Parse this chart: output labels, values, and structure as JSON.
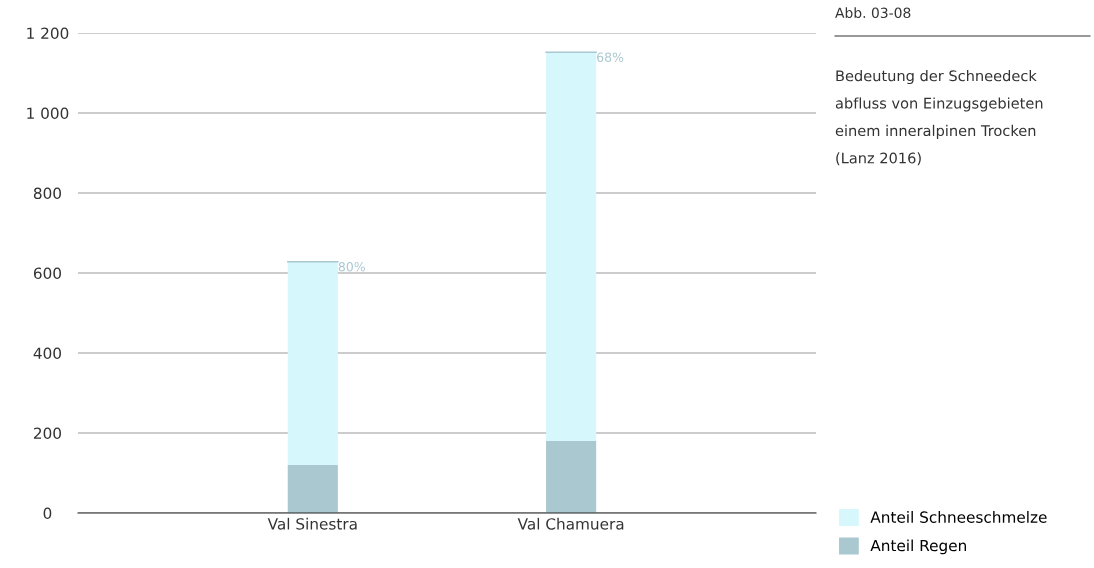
{
  "chart_data": {
    "type": "bar",
    "stacked": true,
    "categories": [
      "Val Sinestra",
      "Val Chamuera"
    ],
    "series": [
      {
        "name": "Anteil Regen",
        "color": "#a9c8cf",
        "values": [
          120,
          180
        ]
      },
      {
        "name": "Anteil Schneeschmelze",
        "color": "#d6f7fc",
        "values": [
          508,
          972
        ]
      }
    ],
    "ylim": [
      0,
      1200
    ],
    "yticks": [
      0,
      200,
      400,
      600,
      800,
      {
        "value": 1000,
        "label": "1 000"
      },
      {
        "value": 1200,
        "label": "1 200"
      }
    ],
    "grid": "y",
    "legend": "bottom right",
    "title": "Abb. 03-08",
    "subtitle": "Bedeutung der Schneedeck\nabfluss von Einzugsgebieten\neinem inneralpinen Trocken\n(Lanz 2016)",
    "annotations": [
      {
        "text": "80%",
        "x": "Val Sinestra",
        "y": 628
      },
      {
        "text": "68%",
        "x": "Val Chamuera",
        "y": 1152
      }
    ]
  }
}
